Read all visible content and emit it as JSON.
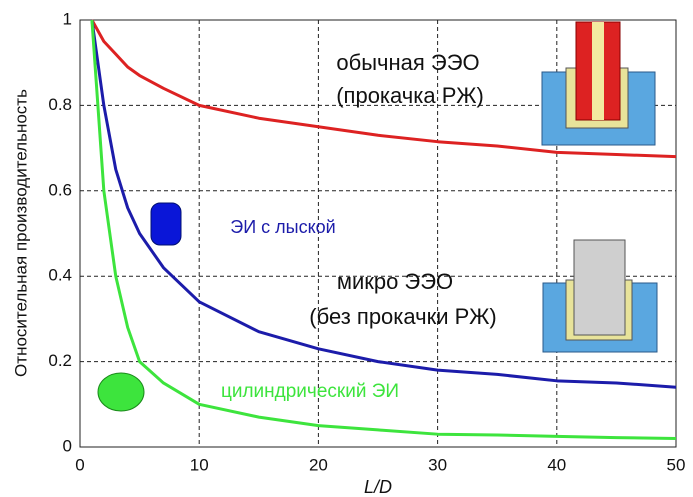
{
  "chart_data": {
    "type": "line",
    "x_label": "L/D",
    "y_label": "Относительная производительность",
    "x": [
      1,
      2,
      3,
      4,
      5,
      7,
      10,
      15,
      20,
      25,
      30,
      35,
      40,
      45,
      50
    ],
    "series": [
      {
        "color": "#dd2222",
        "values": [
          1,
          0.95,
          0.92,
          0.89,
          0.87,
          0.84,
          0.8,
          0.77,
          0.75,
          0.73,
          0.715,
          0.705,
          0.69,
          0.685,
          0.68
        ]
      },
      {
        "color": "#1c1caa",
        "values": [
          1,
          0.8,
          0.65,
          0.56,
          0.5,
          0.42,
          0.34,
          0.27,
          0.23,
          0.2,
          0.18,
          0.17,
          0.155,
          0.15,
          0.14
        ]
      },
      {
        "color": "#3de43d",
        "values": [
          1,
          0.6,
          0.4,
          0.28,
          0.2,
          0.15,
          0.1,
          0.07,
          0.05,
          0.04,
          0.03,
          0.028,
          0.025,
          0.022,
          0.02
        ]
      }
    ],
    "annotations": [
      "обычная ЭЭО",
      "(прокачка РЖ)",
      "ЭИ с лыской",
      "микро ЭЭО",
      "(без прокачки РЖ)",
      "цилиндрический ЭИ"
    ],
    "xlim": [
      0,
      50
    ],
    "ylim": [
      0,
      1
    ],
    "xticks": [
      0,
      10,
      20,
      30,
      40,
      50
    ],
    "yticks": [
      0,
      0.2,
      0.4,
      0.6,
      0.8,
      1
    ],
    "grid": true
  }
}
